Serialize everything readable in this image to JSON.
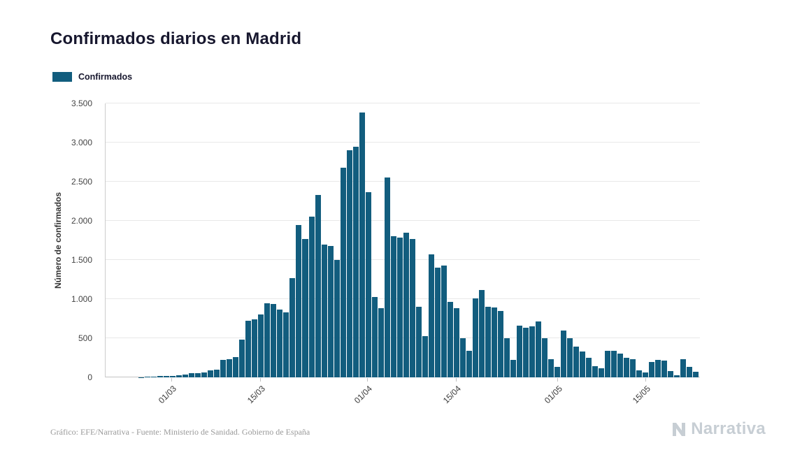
{
  "page": {
    "title": "Confirmados diarios en Madrid",
    "source_note": "Gráfico: EFE/Narrativa - Fuente: Ministerio de Sanidad. Gobierno de España",
    "brand": "Narrativa"
  },
  "chart_data": {
    "type": "bar",
    "title": "Confirmados diarios en Madrid",
    "xlabel": "",
    "ylabel": "Número de confirmados",
    "legend": [
      "Confirmados"
    ],
    "legend_position": "top-left",
    "grid": true,
    "bar_color": "#125d7e",
    "ylim": [
      0,
      3500
    ],
    "yticks": [
      0,
      500,
      1000,
      1500,
      2000,
      2500,
      3000,
      3500
    ],
    "ytick_labels": [
      "0",
      "500",
      "1.000",
      "1.500",
      "2.000",
      "2.500",
      "3.000",
      "3.500"
    ],
    "xtick_labels": [
      "01/03",
      "15/03",
      "01/04",
      "15/04",
      "01/05",
      "15/05"
    ],
    "x": [
      "20/02",
      "21/02",
      "22/02",
      "23/02",
      "24/02",
      "25/02",
      "26/02",
      "27/02",
      "28/02",
      "29/02",
      "01/03",
      "02/03",
      "03/03",
      "04/03",
      "05/03",
      "06/03",
      "07/03",
      "08/03",
      "09/03",
      "10/03",
      "11/03",
      "12/03",
      "13/03",
      "14/03",
      "15/03",
      "16/03",
      "17/03",
      "18/03",
      "19/03",
      "20/03",
      "21/03",
      "22/03",
      "23/03",
      "24/03",
      "25/03",
      "26/03",
      "27/03",
      "28/03",
      "29/03",
      "30/03",
      "31/03",
      "01/04",
      "02/04",
      "03/04",
      "04/04",
      "05/04",
      "06/04",
      "07/04",
      "08/04",
      "09/04",
      "10/04",
      "11/04",
      "12/04",
      "13/04",
      "14/04",
      "15/04",
      "16/04",
      "17/04",
      "18/04",
      "19/04",
      "20/04",
      "21/04",
      "22/04",
      "23/04",
      "24/04",
      "25/04",
      "26/04",
      "27/04",
      "28/04",
      "29/04",
      "30/04",
      "01/05",
      "02/05",
      "03/05",
      "04/05",
      "05/05",
      "06/05",
      "07/05",
      "08/05",
      "09/05",
      "10/05",
      "11/05",
      "12/05",
      "13/05",
      "14/05",
      "15/05",
      "16/05",
      "17/05",
      "18/05",
      "19/05",
      "20/05",
      "21/05",
      "22/05",
      "23/05"
    ],
    "series": [
      {
        "name": "Confirmados",
        "values": [
          0,
          0,
          0,
          0,
          0,
          3,
          5,
          10,
          15,
          15,
          20,
          25,
          35,
          50,
          55,
          60,
          90,
          100,
          220,
          230,
          260,
          480,
          720,
          740,
          800,
          950,
          940,
          870,
          830,
          1270,
          1950,
          1770,
          2050,
          2330,
          1700,
          1680,
          1500,
          2680,
          2900,
          2950,
          3380,
          2370,
          1030,
          880,
          2550,
          1800,
          1790,
          1850,
          1770,
          900,
          530,
          1570,
          1400,
          1430,
          960,
          880,
          500,
          340,
          1010,
          1120,
          900,
          890,
          850,
          500,
          220,
          660,
          630,
          650,
          710,
          500,
          230,
          130,
          600,
          500,
          390,
          330,
          250,
          140,
          120,
          340,
          340,
          300,
          250,
          230,
          90,
          60,
          200,
          220,
          210,
          80,
          30,
          230,
          130,
          70
        ]
      }
    ]
  }
}
